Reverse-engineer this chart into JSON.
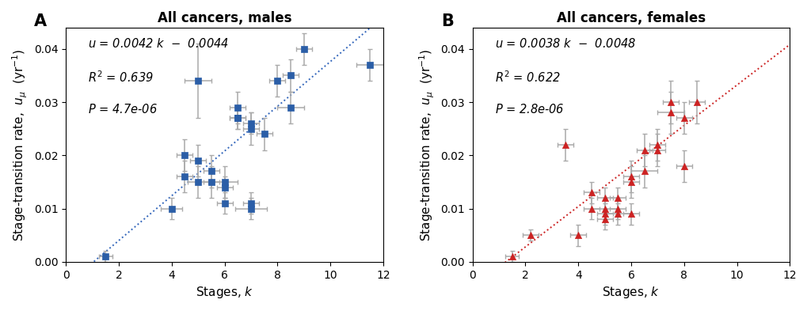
{
  "males": {
    "title": "All cancers, males",
    "label": "A",
    "slope": 0.0042,
    "intercept": -0.0044,
    "marker_color": "#2B5EA7",
    "line_color": "#3366BB",
    "marker": "s",
    "x": [
      1.5,
      4.0,
      4.5,
      4.5,
      5.0,
      5.0,
      5.0,
      5.5,
      5.5,
      6.0,
      6.0,
      6.0,
      6.5,
      6.5,
      6.5,
      7.0,
      7.0,
      7.0,
      7.0,
      7.5,
      8.0,
      8.5,
      8.5,
      9.0,
      11.5
    ],
    "y": [
      0.001,
      0.01,
      0.016,
      0.02,
      0.015,
      0.019,
      0.034,
      0.015,
      0.017,
      0.011,
      0.014,
      0.015,
      0.027,
      0.027,
      0.029,
      0.01,
      0.011,
      0.025,
      0.026,
      0.024,
      0.034,
      0.029,
      0.035,
      0.04,
      0.037
    ],
    "xerr": [
      0.25,
      0.4,
      0.3,
      0.3,
      0.4,
      0.3,
      0.5,
      0.3,
      0.3,
      0.3,
      0.3,
      0.5,
      0.3,
      0.3,
      0.3,
      0.6,
      0.3,
      0.3,
      0.3,
      0.3,
      0.3,
      0.5,
      0.3,
      0.3,
      0.5
    ],
    "yerr": [
      0.001,
      0.002,
      0.003,
      0.003,
      0.003,
      0.003,
      0.007,
      0.003,
      0.003,
      0.002,
      0.002,
      0.003,
      0.002,
      0.002,
      0.003,
      0.002,
      0.002,
      0.003,
      0.002,
      0.003,
      0.003,
      0.003,
      0.003,
      0.003,
      0.003
    ],
    "xlim": [
      0,
      12
    ],
    "ylim": [
      0,
      0.044
    ],
    "xticks": [
      0,
      2,
      4,
      6,
      8,
      10,
      12
    ],
    "yticks": [
      0.0,
      0.01,
      0.02,
      0.03,
      0.04
    ]
  },
  "females": {
    "title": "All cancers, females",
    "label": "B",
    "slope": 0.0038,
    "intercept": -0.0048,
    "marker_color": "#CC2222",
    "line_color": "#CC2222",
    "marker": "^",
    "x": [
      1.5,
      2.2,
      3.5,
      4.0,
      4.5,
      4.5,
      5.0,
      5.0,
      5.0,
      5.0,
      5.5,
      5.5,
      5.5,
      6.0,
      6.0,
      6.0,
      6.5,
      6.5,
      7.0,
      7.0,
      7.5,
      7.5,
      8.0,
      8.0,
      8.5
    ],
    "y": [
      0.001,
      0.005,
      0.022,
      0.005,
      0.013,
      0.01,
      0.008,
      0.009,
      0.01,
      0.012,
      0.009,
      0.01,
      0.012,
      0.009,
      0.015,
      0.016,
      0.017,
      0.021,
      0.021,
      0.022,
      0.028,
      0.03,
      0.018,
      0.027,
      0.03
    ],
    "xerr": [
      0.25,
      0.3,
      0.3,
      0.3,
      0.3,
      0.3,
      0.3,
      0.3,
      0.5,
      0.3,
      0.5,
      0.3,
      0.3,
      0.3,
      0.3,
      0.3,
      0.5,
      0.3,
      0.3,
      0.3,
      0.5,
      0.3,
      0.3,
      0.3,
      0.3
    ],
    "yerr": [
      0.001,
      0.001,
      0.003,
      0.002,
      0.002,
      0.002,
      0.002,
      0.002,
      0.002,
      0.002,
      0.002,
      0.002,
      0.002,
      0.002,
      0.003,
      0.003,
      0.003,
      0.003,
      0.003,
      0.003,
      0.004,
      0.004,
      0.003,
      0.003,
      0.004
    ],
    "xlim": [
      0,
      12
    ],
    "ylim": [
      0,
      0.044
    ],
    "xticks": [
      0,
      2,
      4,
      6,
      8,
      10,
      12
    ],
    "yticks": [
      0.0,
      0.01,
      0.02,
      0.03,
      0.04
    ]
  },
  "annot_males": {
    "line1": [
      "u",
      " = 0.0042 ",
      "k",
      "  -  0.0044"
    ],
    "line2": [
      "R",
      "²",
      " = 0.639"
    ],
    "line3": [
      "P",
      " = 4.7e-06"
    ]
  },
  "annot_females": {
    "line1": [
      "u",
      " = 0.0038 ",
      "k",
      "  -  0.0048"
    ],
    "line2": [
      "R",
      "²",
      " = 0.622"
    ],
    "line3": [
      "P",
      " = 2.8e-06"
    ]
  },
  "errbar_color": "#AAAAAA",
  "background": "#FFFFFF",
  "title_fontsize": 12,
  "label_fontsize": 11,
  "tick_fontsize": 10,
  "annot_fontsize": 10.5,
  "panel_label_fontsize": 15
}
